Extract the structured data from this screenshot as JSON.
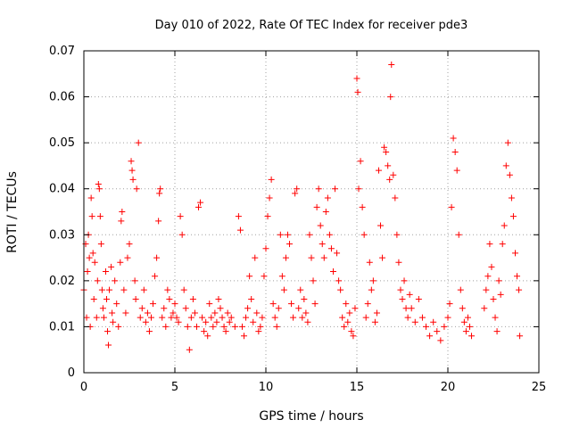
{
  "chart_data": {
    "type": "scatter",
    "title": "Day 010 of 2022, Rate Of TEC Index for receiver pde3",
    "xlabel": "GPS time / hours",
    "ylabel": "ROTI / TECUs",
    "xlim": [
      0,
      25
    ],
    "ylim": [
      0,
      0.07
    ],
    "x_ticks": [
      0,
      5,
      10,
      15,
      20,
      25
    ],
    "x_tick_labels": [
      "0",
      "5",
      "10",
      "15",
      "20",
      "25"
    ],
    "y_ticks": [
      0,
      0.01,
      0.02,
      0.03,
      0.04,
      0.05,
      0.06,
      0.07
    ],
    "y_tick_labels": [
      "0",
      "0.01",
      "0.02",
      "0.03",
      "0.04",
      "0.05",
      "0.06",
      "0.07"
    ],
    "grid": true,
    "marker": "plus",
    "color": "#ff0000",
    "series": [
      {
        "points": [
          [
            0.0,
            0.018
          ],
          [
            0.1,
            0.028
          ],
          [
            0.15,
            0.012
          ],
          [
            0.2,
            0.022
          ],
          [
            0.25,
            0.03
          ],
          [
            0.3,
            0.025
          ],
          [
            0.35,
            0.01
          ],
          [
            0.4,
            0.038
          ],
          [
            0.45,
            0.034
          ],
          [
            0.5,
            0.026
          ],
          [
            0.55,
            0.016
          ],
          [
            0.6,
            0.024
          ],
          [
            0.7,
            0.012
          ],
          [
            0.75,
            0.02
          ],
          [
            0.8,
            0.041
          ],
          [
            0.85,
            0.04
          ],
          [
            0.9,
            0.034
          ],
          [
            0.95,
            0.028
          ],
          [
            1.0,
            0.018
          ],
          [
            1.05,
            0.014
          ],
          [
            1.1,
            0.012
          ],
          [
            1.2,
            0.022
          ],
          [
            1.25,
            0.016
          ],
          [
            1.3,
            0.009
          ],
          [
            1.35,
            0.006
          ],
          [
            1.4,
            0.018
          ],
          [
            1.5,
            0.023
          ],
          [
            1.55,
            0.013
          ],
          [
            1.6,
            0.011
          ],
          [
            1.7,
            0.02
          ],
          [
            1.8,
            0.015
          ],
          [
            1.9,
            0.01
          ],
          [
            2.0,
            0.024
          ],
          [
            2.05,
            0.033
          ],
          [
            2.1,
            0.035
          ],
          [
            2.2,
            0.018
          ],
          [
            2.3,
            0.013
          ],
          [
            2.4,
            0.025
          ],
          [
            2.5,
            0.028
          ],
          [
            2.6,
            0.046
          ],
          [
            2.65,
            0.044
          ],
          [
            2.7,
            0.042
          ],
          [
            2.8,
            0.02
          ],
          [
            2.85,
            0.016
          ],
          [
            2.9,
            0.04
          ],
          [
            3.0,
            0.05
          ],
          [
            3.1,
            0.012
          ],
          [
            3.2,
            0.014
          ],
          [
            3.3,
            0.018
          ],
          [
            3.4,
            0.011
          ],
          [
            3.5,
            0.013
          ],
          [
            3.6,
            0.009
          ],
          [
            3.7,
            0.012
          ],
          [
            3.8,
            0.015
          ],
          [
            3.9,
            0.021
          ],
          [
            4.0,
            0.025
          ],
          [
            4.1,
            0.033
          ],
          [
            4.15,
            0.039
          ],
          [
            4.2,
            0.04
          ],
          [
            4.3,
            0.012
          ],
          [
            4.4,
            0.014
          ],
          [
            4.5,
            0.01
          ],
          [
            4.6,
            0.018
          ],
          [
            4.7,
            0.016
          ],
          [
            4.8,
            0.012
          ],
          [
            4.9,
            0.013
          ],
          [
            5.0,
            0.015
          ],
          [
            5.1,
            0.012
          ],
          [
            5.2,
            0.011
          ],
          [
            5.3,
            0.034
          ],
          [
            5.4,
            0.03
          ],
          [
            5.5,
            0.018
          ],
          [
            5.6,
            0.014
          ],
          [
            5.7,
            0.01
          ],
          [
            5.8,
            0.005
          ],
          [
            5.9,
            0.012
          ],
          [
            6.0,
            0.016
          ],
          [
            6.1,
            0.013
          ],
          [
            6.2,
            0.01
          ],
          [
            6.3,
            0.036
          ],
          [
            6.4,
            0.037
          ],
          [
            6.5,
            0.012
          ],
          [
            6.6,
            0.009
          ],
          [
            6.7,
            0.011
          ],
          [
            6.8,
            0.008
          ],
          [
            6.9,
            0.015
          ],
          [
            7.0,
            0.012
          ],
          [
            7.1,
            0.01
          ],
          [
            7.2,
            0.013
          ],
          [
            7.3,
            0.011
          ],
          [
            7.4,
            0.016
          ],
          [
            7.5,
            0.014
          ],
          [
            7.6,
            0.012
          ],
          [
            7.7,
            0.01
          ],
          [
            7.8,
            0.009
          ],
          [
            7.9,
            0.013
          ],
          [
            8.0,
            0.011
          ],
          [
            8.1,
            0.012
          ],
          [
            8.3,
            0.01
          ],
          [
            8.5,
            0.034
          ],
          [
            8.6,
            0.031
          ],
          [
            8.7,
            0.01
          ],
          [
            8.8,
            0.008
          ],
          [
            8.9,
            0.012
          ],
          [
            9.0,
            0.014
          ],
          [
            9.1,
            0.021
          ],
          [
            9.2,
            0.016
          ],
          [
            9.3,
            0.011
          ],
          [
            9.4,
            0.025
          ],
          [
            9.5,
            0.013
          ],
          [
            9.6,
            0.009
          ],
          [
            9.7,
            0.01
          ],
          [
            9.8,
            0.012
          ],
          [
            9.9,
            0.021
          ],
          [
            10.0,
            0.027
          ],
          [
            10.1,
            0.034
          ],
          [
            10.2,
            0.038
          ],
          [
            10.3,
            0.042
          ],
          [
            10.4,
            0.015
          ],
          [
            10.5,
            0.012
          ],
          [
            10.6,
            0.01
          ],
          [
            10.7,
            0.014
          ],
          [
            10.8,
            0.03
          ],
          [
            10.9,
            0.021
          ],
          [
            11.0,
            0.018
          ],
          [
            11.1,
            0.025
          ],
          [
            11.2,
            0.03
          ],
          [
            11.3,
            0.028
          ],
          [
            11.4,
            0.015
          ],
          [
            11.5,
            0.012
          ],
          [
            11.6,
            0.039
          ],
          [
            11.7,
            0.04
          ],
          [
            11.8,
            0.014
          ],
          [
            11.9,
            0.018
          ],
          [
            12.0,
            0.012
          ],
          [
            12.1,
            0.016
          ],
          [
            12.2,
            0.013
          ],
          [
            12.3,
            0.011
          ],
          [
            12.4,
            0.03
          ],
          [
            12.5,
            0.025
          ],
          [
            12.6,
            0.02
          ],
          [
            12.7,
            0.015
          ],
          [
            12.8,
            0.036
          ],
          [
            12.9,
            0.04
          ],
          [
            13.0,
            0.032
          ],
          [
            13.1,
            0.028
          ],
          [
            13.2,
            0.025
          ],
          [
            13.3,
            0.035
          ],
          [
            13.4,
            0.038
          ],
          [
            13.5,
            0.03
          ],
          [
            13.6,
            0.027
          ],
          [
            13.7,
            0.022
          ],
          [
            13.8,
            0.04
          ],
          [
            13.9,
            0.026
          ],
          [
            14.0,
            0.02
          ],
          [
            14.1,
            0.018
          ],
          [
            14.2,
            0.012
          ],
          [
            14.3,
            0.01
          ],
          [
            14.4,
            0.015
          ],
          [
            14.5,
            0.011
          ],
          [
            14.6,
            0.013
          ],
          [
            14.7,
            0.009
          ],
          [
            14.8,
            0.008
          ],
          [
            14.9,
            0.014
          ],
          [
            15.0,
            0.064
          ],
          [
            15.05,
            0.061
          ],
          [
            15.1,
            0.04
          ],
          [
            15.2,
            0.046
          ],
          [
            15.3,
            0.036
          ],
          [
            15.4,
            0.03
          ],
          [
            15.5,
            0.012
          ],
          [
            15.6,
            0.015
          ],
          [
            15.7,
            0.024
          ],
          [
            15.8,
            0.018
          ],
          [
            15.9,
            0.02
          ],
          [
            16.0,
            0.011
          ],
          [
            16.1,
            0.013
          ],
          [
            16.2,
            0.044
          ],
          [
            16.3,
            0.032
          ],
          [
            16.4,
            0.025
          ],
          [
            16.5,
            0.049
          ],
          [
            16.6,
            0.048
          ],
          [
            16.7,
            0.045
          ],
          [
            16.8,
            0.042
          ],
          [
            16.85,
            0.06
          ],
          [
            16.9,
            0.067
          ],
          [
            17.0,
            0.043
          ],
          [
            17.1,
            0.038
          ],
          [
            17.2,
            0.03
          ],
          [
            17.3,
            0.024
          ],
          [
            17.4,
            0.018
          ],
          [
            17.5,
            0.016
          ],
          [
            17.6,
            0.02
          ],
          [
            17.7,
            0.014
          ],
          [
            17.8,
            0.012
          ],
          [
            17.9,
            0.017
          ],
          [
            18.0,
            0.014
          ],
          [
            18.2,
            0.011
          ],
          [
            18.4,
            0.016
          ],
          [
            18.6,
            0.012
          ],
          [
            18.8,
            0.01
          ],
          [
            19.0,
            0.008
          ],
          [
            19.2,
            0.011
          ],
          [
            19.4,
            0.009
          ],
          [
            19.6,
            0.007
          ],
          [
            19.8,
            0.01
          ],
          [
            20.0,
            0.012
          ],
          [
            20.1,
            0.015
          ],
          [
            20.2,
            0.036
          ],
          [
            20.3,
            0.051
          ],
          [
            20.4,
            0.048
          ],
          [
            20.5,
            0.044
          ],
          [
            20.6,
            0.03
          ],
          [
            20.7,
            0.018
          ],
          [
            20.8,
            0.014
          ],
          [
            20.9,
            0.011
          ],
          [
            21.0,
            0.009
          ],
          [
            21.1,
            0.012
          ],
          [
            21.2,
            0.01
          ],
          [
            21.3,
            0.008
          ],
          [
            22.0,
            0.014
          ],
          [
            22.1,
            0.018
          ],
          [
            22.2,
            0.021
          ],
          [
            22.3,
            0.028
          ],
          [
            22.4,
            0.023
          ],
          [
            22.5,
            0.016
          ],
          [
            22.6,
            0.012
          ],
          [
            22.7,
            0.009
          ],
          [
            22.8,
            0.02
          ],
          [
            22.9,
            0.017
          ],
          [
            23.0,
            0.028
          ],
          [
            23.1,
            0.032
          ],
          [
            23.2,
            0.045
          ],
          [
            23.3,
            0.05
          ],
          [
            23.4,
            0.043
          ],
          [
            23.5,
            0.038
          ],
          [
            23.6,
            0.034
          ],
          [
            23.7,
            0.026
          ],
          [
            23.8,
            0.021
          ],
          [
            23.9,
            0.018
          ],
          [
            23.95,
            0.008
          ]
        ]
      }
    ]
  }
}
